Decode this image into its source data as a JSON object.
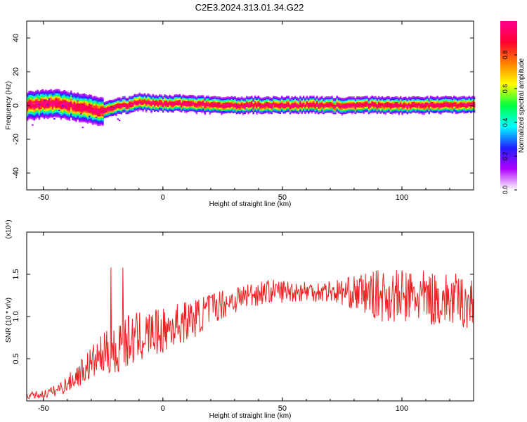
{
  "title": "C2E3.2024.313.01.34.G22",
  "chart_data": [
    {
      "type": "heatmap",
      "xlabel": "Height of straight line (km)",
      "ylabel": "Frequency (Hz)",
      "xlim": [
        -57,
        130
      ],
      "ylim": [
        -50,
        50
      ],
      "xticks": [
        -50,
        0,
        50,
        100
      ],
      "yticks": [
        -40,
        -20,
        0,
        20,
        40
      ],
      "colorbar": {
        "label": "Normalized spectral amplitude",
        "range": [
          0,
          1
        ],
        "ticks": [
          "0.0",
          "0.2",
          "0.4",
          "0.6",
          "0.8"
        ],
        "colors": [
          "#ffffff",
          "#b000ff",
          "#2020ff",
          "#00ffff",
          "#00ff40",
          "#ffff00",
          "#ff8000",
          "#ff0030",
          "#ff0090"
        ]
      },
      "ridge": {
        "x": [
          -57,
          -45,
          -35,
          -28,
          -24,
          -20,
          -15,
          -10,
          -5,
          0,
          10,
          20,
          40,
          60,
          80,
          100,
          130
        ],
        "y": [
          0,
          1,
          -1,
          -3,
          -3,
          -1,
          0,
          2,
          1,
          1,
          1,
          0,
          0,
          0,
          0,
          0,
          0
        ]
      }
    },
    {
      "type": "line",
      "xlabel": "Height of straight line (km)",
      "ylabel": "SNR (10 * v/v)",
      "multiplier": "(x10⁴)",
      "xlim": [
        -57,
        130
      ],
      "ylim": [
        0,
        2
      ],
      "xticks": [
        -50,
        0,
        50,
        100
      ],
      "yticks": [
        "0.5",
        "1.0",
        "1.5"
      ],
      "line_color": "#ee2020",
      "series": [
        {
          "x": [
            -57,
            -50,
            -45,
            -40,
            -35,
            -30,
            -25,
            -20,
            -18,
            -15,
            -10,
            -5,
            0,
            5,
            10,
            15,
            20,
            25,
            30,
            35,
            40,
            45,
            50,
            55,
            60,
            65,
            70,
            75,
            80,
            85,
            90,
            95,
            100,
            105,
            110,
            115,
            120,
            125,
            130
          ],
          "values": [
            0.06,
            0.08,
            0.12,
            0.2,
            0.32,
            0.45,
            0.55,
            0.6,
            0.65,
            0.7,
            0.75,
            0.8,
            0.82,
            0.9,
            0.95,
            1.0,
            1.1,
            1.15,
            1.2,
            1.25,
            1.28,
            1.3,
            1.3,
            1.3,
            1.3,
            1.3,
            1.3,
            1.29,
            1.28,
            1.27,
            1.25,
            1.24,
            1.23,
            1.23,
            1.22,
            1.2,
            1.2,
            1.18,
            1.15
          ],
          "spread": [
            0.04,
            0.05,
            0.07,
            0.1,
            0.15,
            0.2,
            0.25,
            0.3,
            0.35,
            0.32,
            0.3,
            0.28,
            0.27,
            0.26,
            0.24,
            0.22,
            0.2,
            0.18,
            0.17,
            0.16,
            0.15,
            0.14,
            0.14,
            0.13,
            0.13,
            0.13,
            0.14,
            0.16,
            0.2,
            0.26,
            0.3,
            0.32,
            0.33,
            0.33,
            0.32,
            0.32,
            0.32,
            0.32,
            0.32
          ]
        }
      ]
    }
  ]
}
